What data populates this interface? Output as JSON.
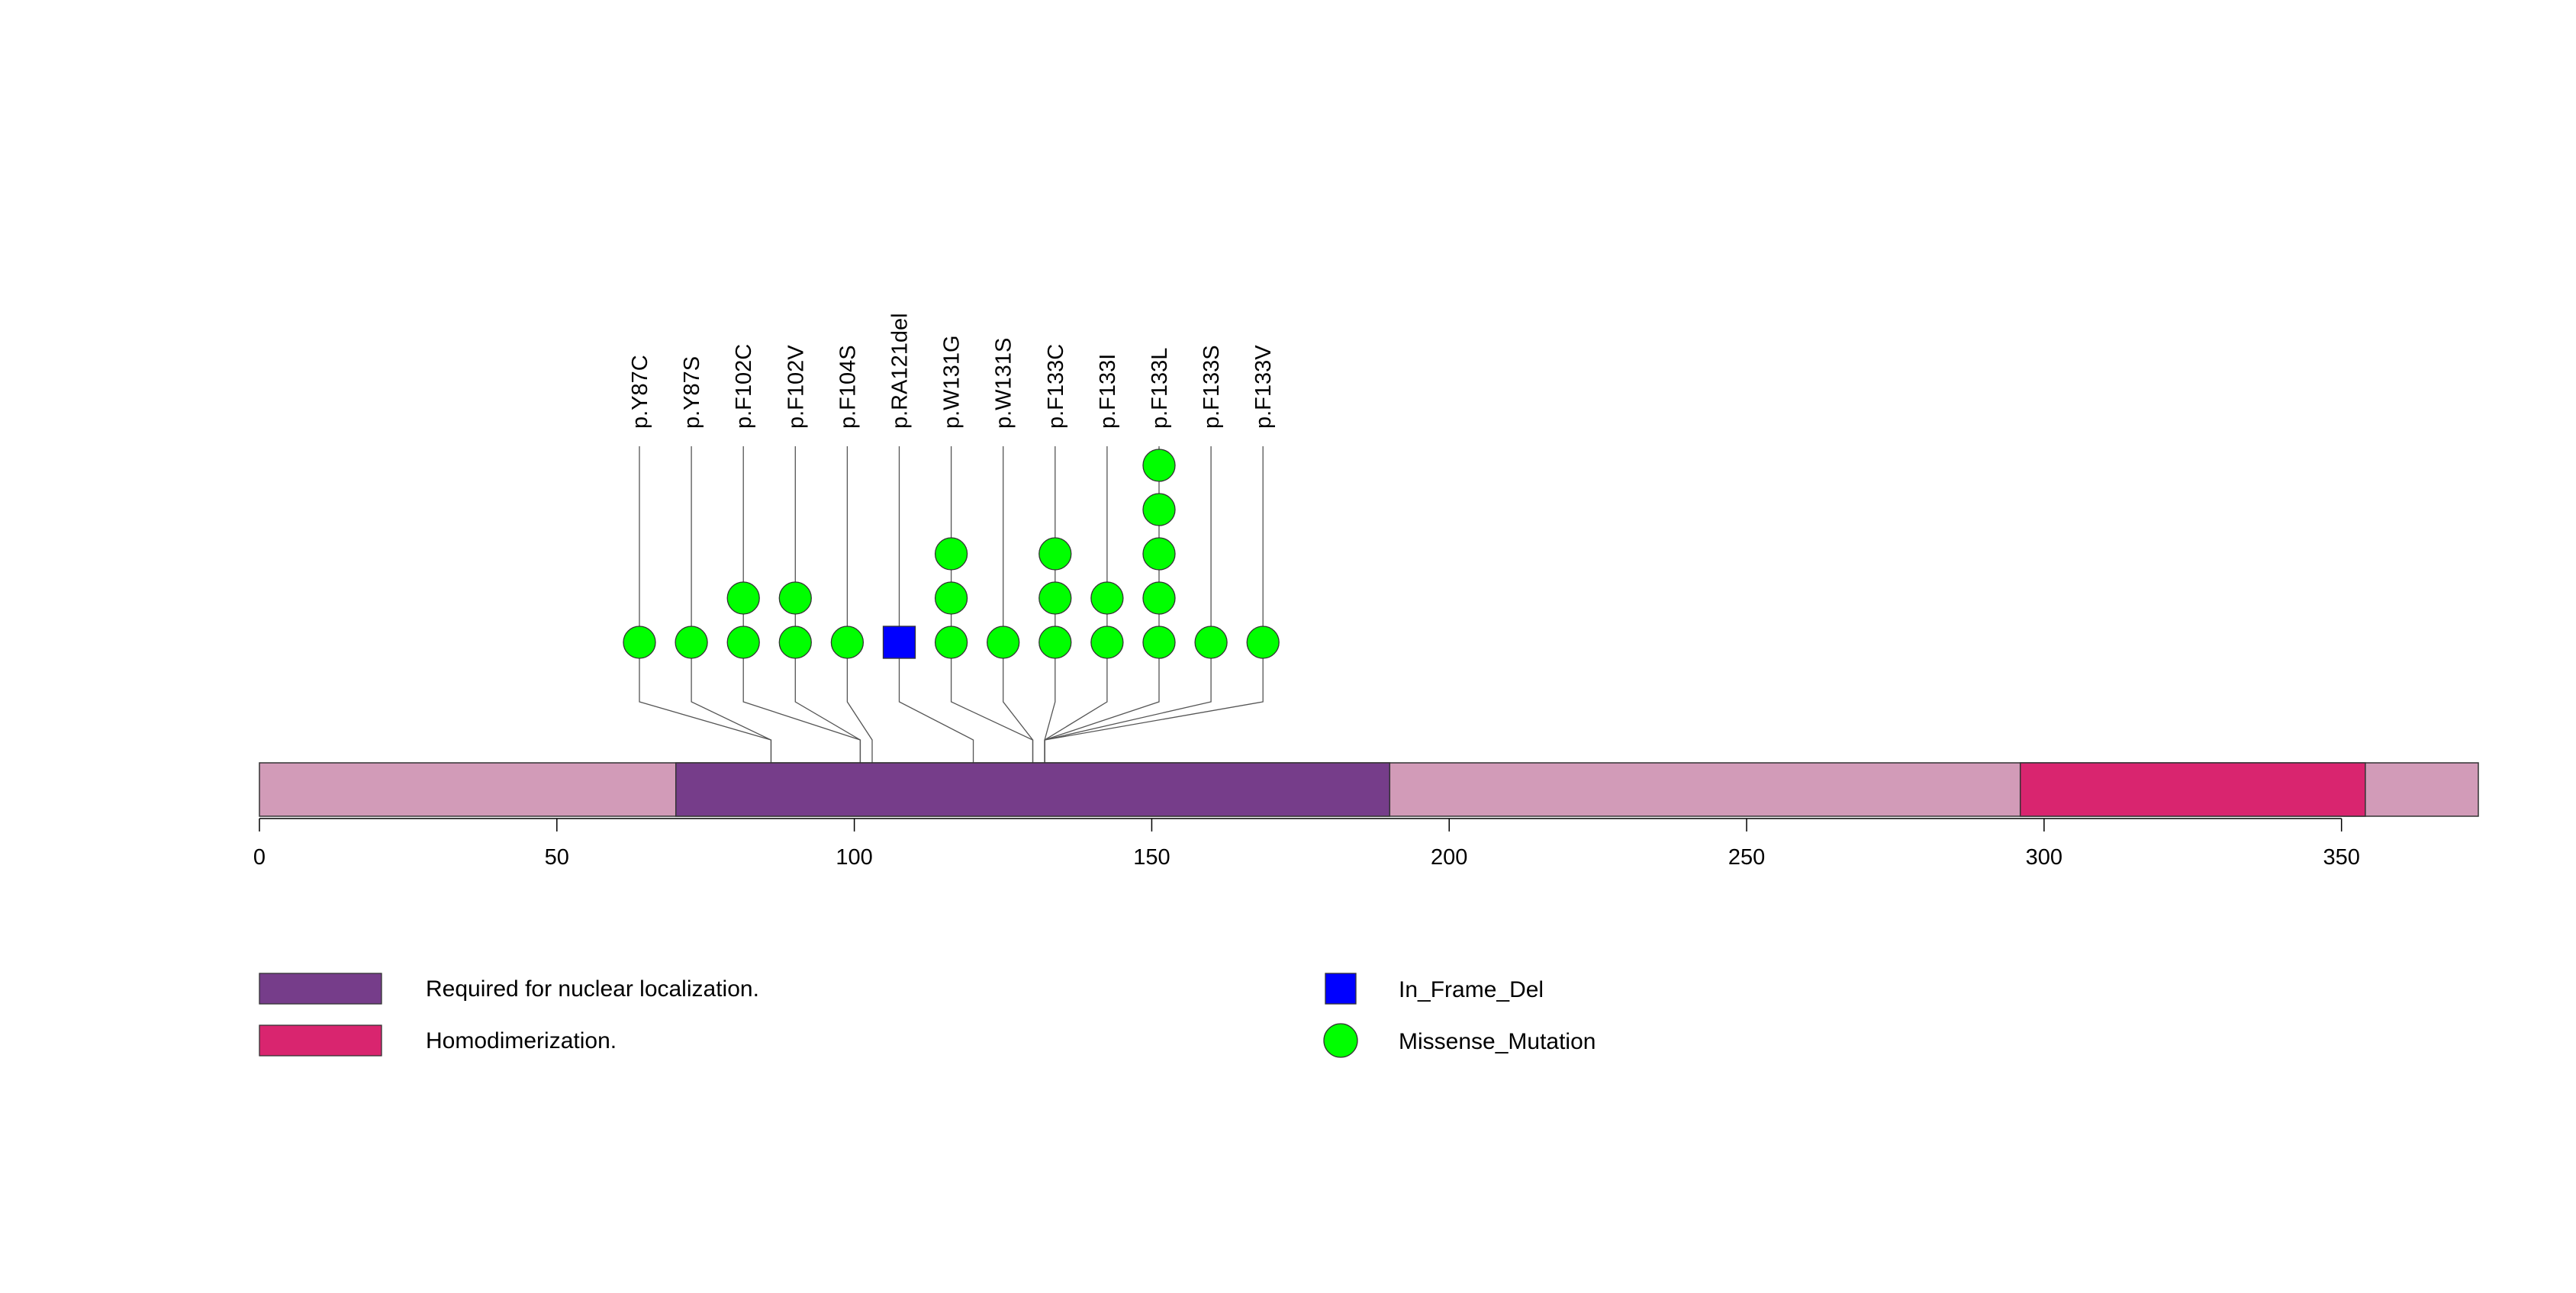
{
  "chart_data": {
    "type": "lollipop",
    "title": "",
    "protein_length": 373,
    "x_ticks": [
      0,
      50,
      100,
      150,
      200,
      250,
      300,
      350
    ],
    "colors": {
      "backbone": "#D29BB8",
      "missense": "#00FF00",
      "in_frame_del": "#0000FF",
      "stroke": "#333333",
      "stem": "#555555"
    },
    "domains": [
      {
        "name": "Required for nuclear localization.",
        "start": 70,
        "end": 190,
        "color": "#763D8A"
      },
      {
        "name": "Homodimerization.",
        "start": 296,
        "end": 354,
        "color": "#D9256F"
      }
    ],
    "mutations": [
      {
        "label": "p.Y87C",
        "position": 86,
        "count": 1,
        "type": "Missense_Mutation"
      },
      {
        "label": "p.Y87S",
        "position": 86,
        "count": 1,
        "type": "Missense_Mutation"
      },
      {
        "label": "p.F102C",
        "position": 101,
        "count": 2,
        "type": "Missense_Mutation"
      },
      {
        "label": "p.F102V",
        "position": 101,
        "count": 2,
        "type": "Missense_Mutation"
      },
      {
        "label": "p.F104S",
        "position": 103,
        "count": 1,
        "type": "Missense_Mutation"
      },
      {
        "label": "p.RA121del",
        "position": 120,
        "count": 1,
        "type": "In_Frame_Del"
      },
      {
        "label": "p.W131G",
        "position": 130,
        "count": 3,
        "type": "Missense_Mutation"
      },
      {
        "label": "p.W131S",
        "position": 130,
        "count": 1,
        "type": "Missense_Mutation"
      },
      {
        "label": "p.F133C",
        "position": 132,
        "count": 3,
        "type": "Missense_Mutation"
      },
      {
        "label": "p.F133I",
        "position": 132,
        "count": 2,
        "type": "Missense_Mutation"
      },
      {
        "label": "p.F133L",
        "position": 132,
        "count": 5,
        "type": "Missense_Mutation"
      },
      {
        "label": "p.F133S",
        "position": 132,
        "count": 1,
        "type": "Missense_Mutation"
      },
      {
        "label": "p.F133V",
        "position": 132,
        "count": 1,
        "type": "Missense_Mutation"
      }
    ],
    "legend": {
      "domains": [
        {
          "label": "Required for nuclear localization.",
          "color": "#763D8A"
        },
        {
          "label": "Homodimerization.",
          "color": "#D9256F"
        }
      ],
      "mutation_types": [
        {
          "label": "In_Frame_Del",
          "shape": "square",
          "color": "#0000FF"
        },
        {
          "label": "Missense_Mutation",
          "shape": "circle",
          "color": "#00FF00"
        }
      ]
    }
  }
}
